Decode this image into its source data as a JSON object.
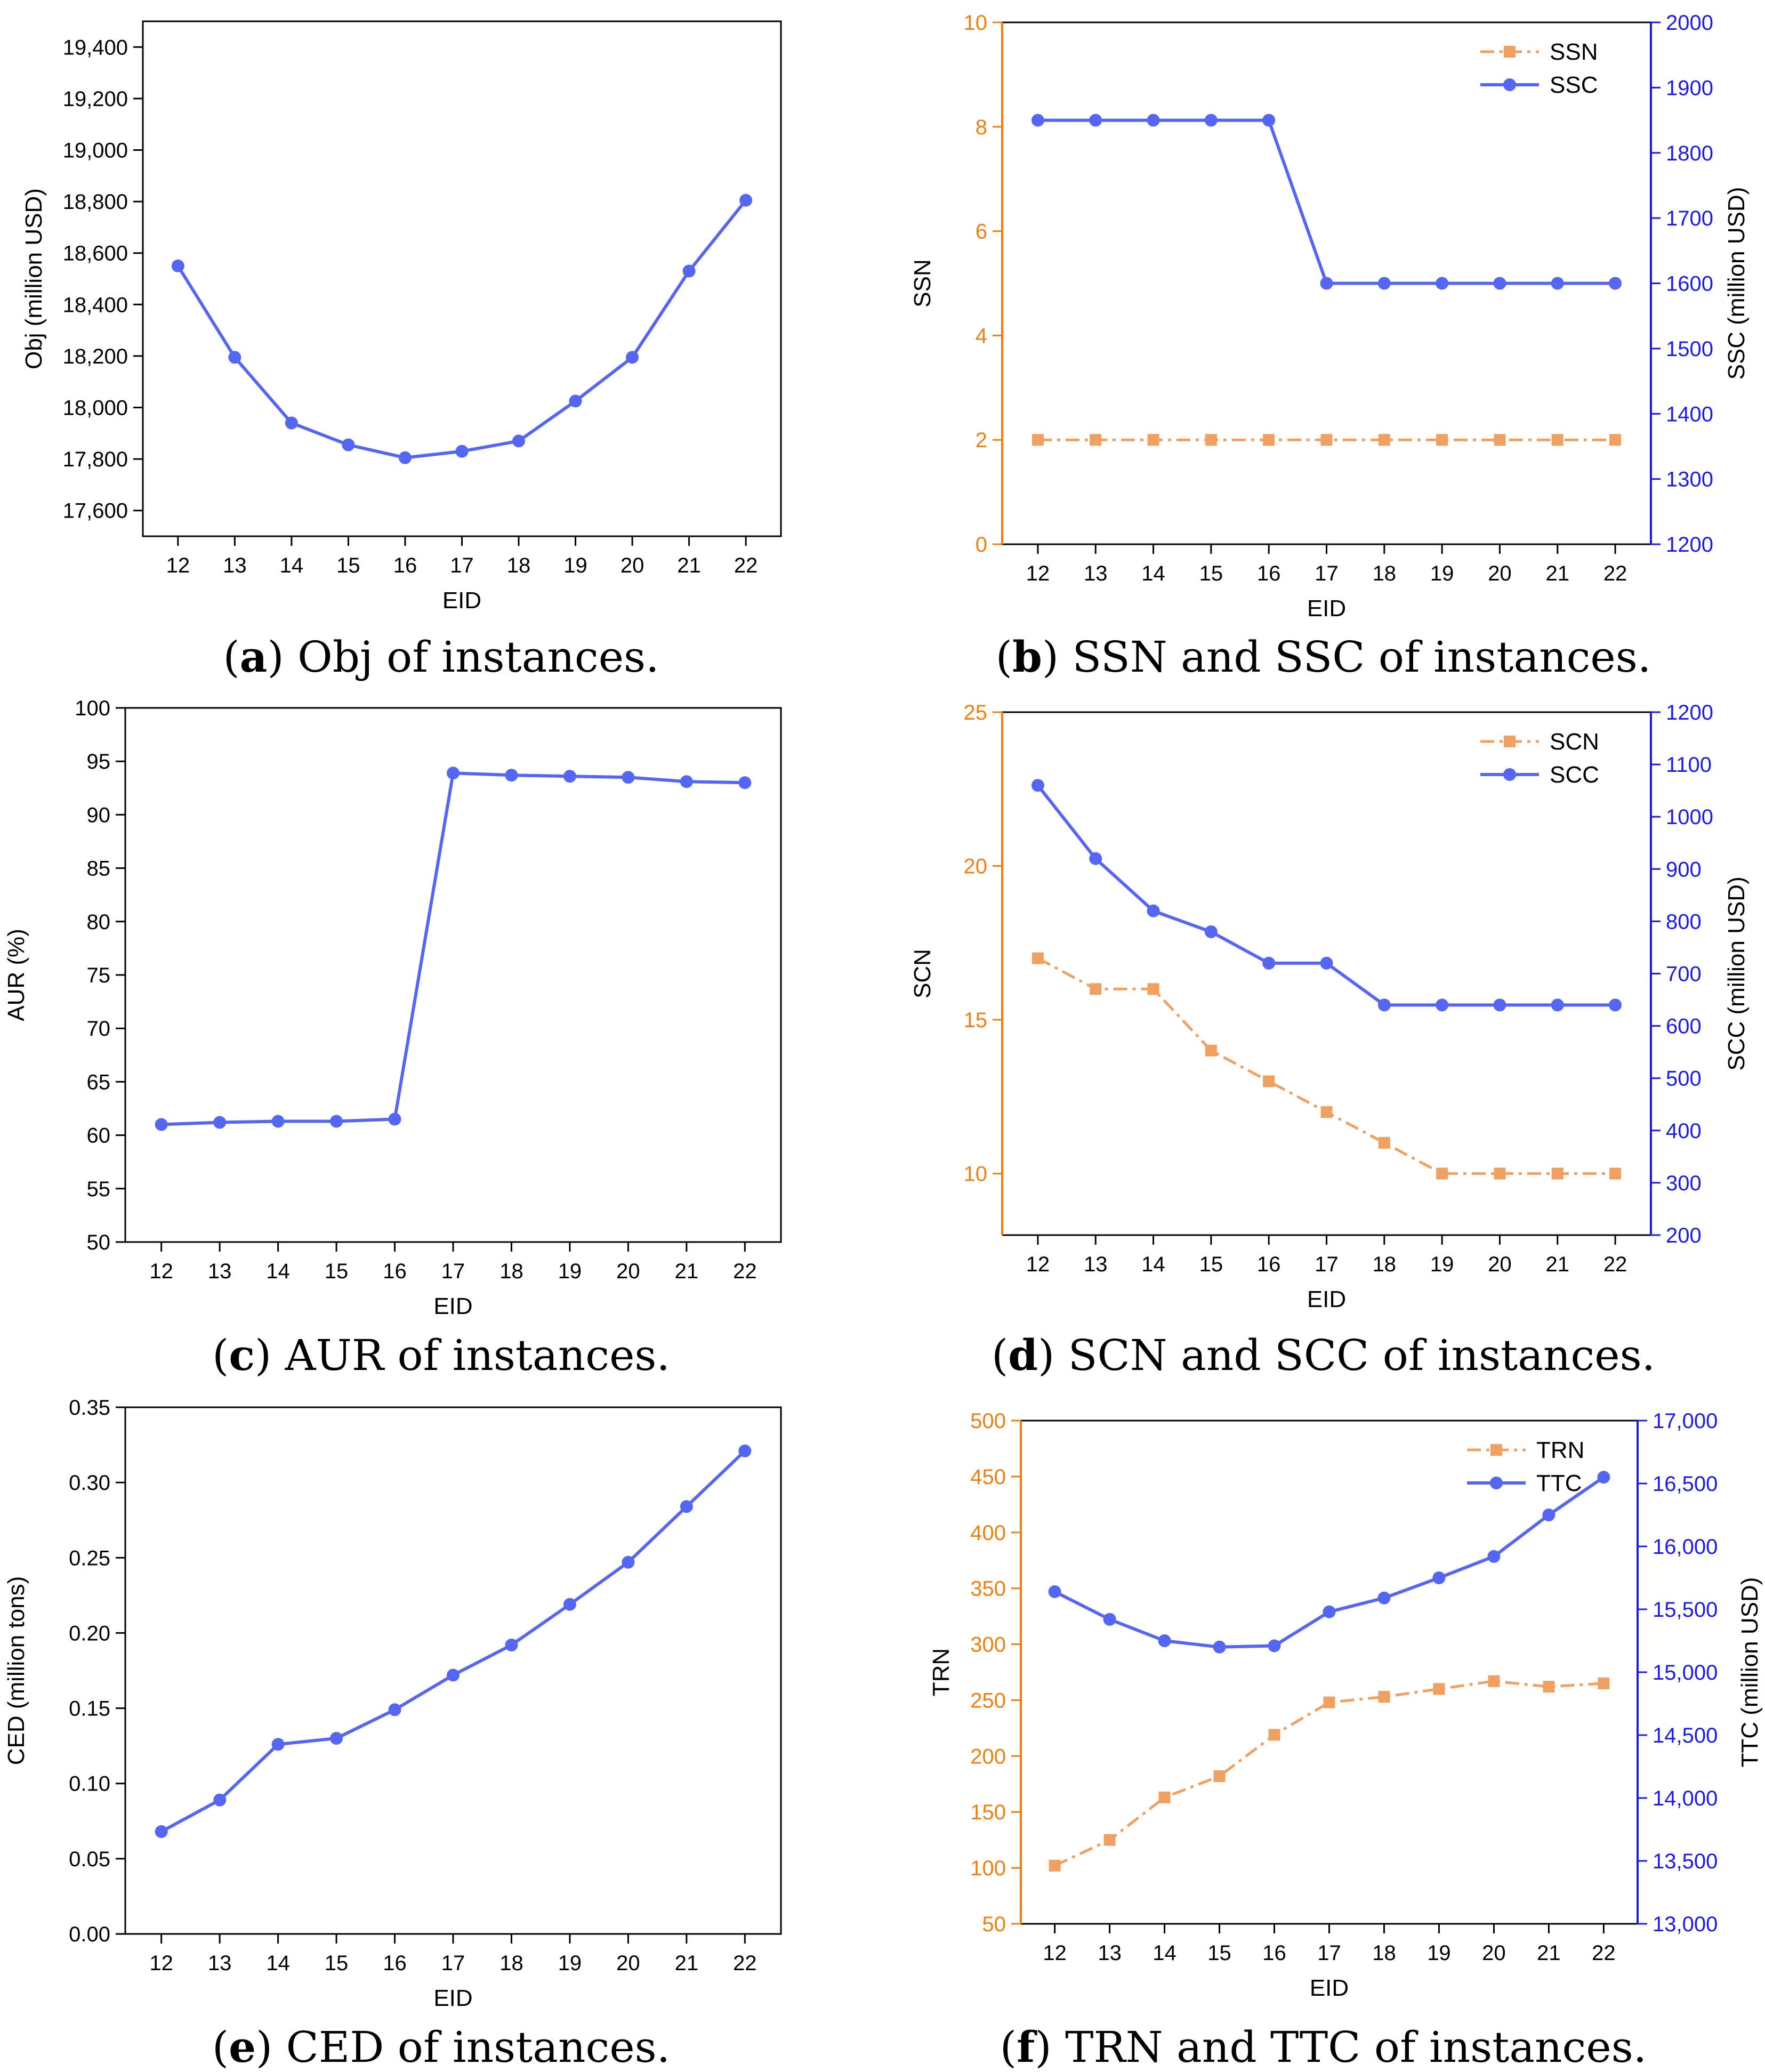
{
  "colors": {
    "primary": "#5566f2",
    "secondary": "#f0a060",
    "secondary_axis": "#f07f10",
    "right_axis": "#1a1af0",
    "axis": "#000000"
  },
  "chart_data": [
    {
      "id": "a",
      "type": "line",
      "caption": {
        "letter": "a",
        "text": ") Obj of instances.",
        "open": "("
      },
      "xlabel": "EID",
      "ylabel": "Obj (million USD)",
      "x": [
        12,
        13,
        14,
        15,
        16,
        17,
        18,
        19,
        20,
        21,
        22
      ],
      "ylim": [
        17500,
        19500
      ],
      "yticks": [
        17600,
        17800,
        18000,
        18200,
        18400,
        18600,
        18800,
        19000,
        19200,
        19400
      ],
      "ytick_labels": [
        "17,600",
        "17,800",
        "18,000",
        "18,200",
        "18,400",
        "18,600",
        "18,800",
        "19,000",
        "19,200",
        "19,400"
      ],
      "series": [
        {
          "name": "Obj",
          "axis": "left",
          "style": "circle-solid",
          "color": "#5566f2",
          "values": [
            18550,
            18195,
            17940,
            17855,
            17805,
            17830,
            17870,
            18025,
            18195,
            18530,
            18805
          ]
        }
      ]
    },
    {
      "id": "b",
      "type": "line",
      "caption": {
        "letter": "b",
        "text": ") SSN and SSC of instances.",
        "open": "("
      },
      "xlabel": "EID",
      "ylabel": "SSN",
      "ylabel_right": "SSC (million USD)",
      "x": [
        12,
        13,
        14,
        15,
        16,
        17,
        18,
        19,
        20,
        21,
        22
      ],
      "ylim": [
        0,
        10
      ],
      "yticks": [
        0,
        2,
        4,
        6,
        8,
        10
      ],
      "ytick_labels": [
        "0",
        "2",
        "4",
        "6",
        "8",
        "10"
      ],
      "ylim_right": [
        1200,
        2000
      ],
      "yticks_right": [
        1200,
        1300,
        1400,
        1500,
        1600,
        1700,
        1800,
        1900,
        2000
      ],
      "ytick_labels_right": [
        "1200",
        "1300",
        "1400",
        "1500",
        "1600",
        "1700",
        "1800",
        "1900",
        "2000"
      ],
      "legend": "top-right",
      "series": [
        {
          "name": "SSN",
          "axis": "left",
          "style": "square-dashdot",
          "color": "#f0a060",
          "values": [
            2,
            2,
            2,
            2,
            2,
            2,
            2,
            2,
            2,
            2,
            2
          ]
        },
        {
          "name": "SSC",
          "axis": "right",
          "style": "circle-solid",
          "color": "#5566f2",
          "values": [
            1850,
            1850,
            1850,
            1850,
            1850,
            1600,
            1600,
            1600,
            1600,
            1600,
            1600
          ]
        }
      ]
    },
    {
      "id": "c",
      "type": "line",
      "caption": {
        "letter": "c",
        "text": ") AUR of instances.",
        "open": "("
      },
      "xlabel": "EID",
      "ylabel": "AUR (%)",
      "x": [
        12,
        13,
        14,
        15,
        16,
        17,
        18,
        19,
        20,
        21,
        22
      ],
      "ylim": [
        50,
        100
      ],
      "yticks": [
        50,
        55,
        60,
        65,
        70,
        75,
        80,
        85,
        90,
        95,
        100
      ],
      "ytick_labels": [
        "50",
        "55",
        "60",
        "65",
        "70",
        "75",
        "80",
        "85",
        "90",
        "95",
        "100"
      ],
      "series": [
        {
          "name": "AUR",
          "axis": "left",
          "style": "circle-solid",
          "color": "#5566f2",
          "values": [
            61.0,
            61.2,
            61.3,
            61.3,
            61.5,
            93.9,
            93.7,
            93.6,
            93.5,
            93.1,
            93.0
          ]
        }
      ]
    },
    {
      "id": "d",
      "type": "line",
      "caption": {
        "letter": "d",
        "text": ") SCN and SCC of instances.",
        "open": "("
      },
      "xlabel": "EID",
      "ylabel": "SCN",
      "ylabel_right": "SCC (million USD)",
      "x": [
        12,
        13,
        14,
        15,
        16,
        17,
        18,
        19,
        20,
        21,
        22
      ],
      "ylim": [
        8,
        25
      ],
      "yticks": [
        10,
        15,
        20,
        25
      ],
      "ytick_labels": [
        "10",
        "15",
        "20",
        "25"
      ],
      "ylim_right": [
        200,
        1200
      ],
      "yticks_right": [
        200,
        300,
        400,
        500,
        600,
        700,
        800,
        900,
        1000,
        1100,
        1200
      ],
      "ytick_labels_right": [
        "200",
        "300",
        "400",
        "500",
        "600",
        "700",
        "800",
        "900",
        "1000",
        "1100",
        "1200"
      ],
      "legend": "top-right",
      "series": [
        {
          "name": "SCN",
          "axis": "left",
          "style": "square-dashdot",
          "color": "#f0a060",
          "values": [
            17,
            16,
            16,
            14,
            13,
            12,
            11,
            10,
            10,
            10,
            10
          ]
        },
        {
          "name": "SCC",
          "axis": "right",
          "style": "circle-solid",
          "color": "#5566f2",
          "values": [
            1060,
            920,
            820,
            780,
            720,
            720,
            640,
            640,
            640,
            640,
            640
          ]
        }
      ]
    },
    {
      "id": "e",
      "type": "line",
      "caption": {
        "letter": "e",
        "text": ") CED of instances.",
        "open": "("
      },
      "xlabel": "EID",
      "ylabel": "CED (million tons)",
      "x": [
        12,
        13,
        14,
        15,
        16,
        17,
        18,
        19,
        20,
        21,
        22
      ],
      "ylim": [
        0,
        0.35
      ],
      "yticks": [
        0,
        0.05,
        0.1,
        0.15,
        0.2,
        0.25,
        0.3,
        0.35
      ],
      "ytick_labels": [
        "0.00",
        "0.05",
        "0.10",
        "0.15",
        "0.20",
        "0.25",
        "0.30",
        "0.35"
      ],
      "series": [
        {
          "name": "CED",
          "axis": "left",
          "style": "circle-solid",
          "color": "#5566f2",
          "values": [
            0.068,
            0.089,
            0.126,
            0.13,
            0.149,
            0.172,
            0.192,
            0.219,
            0.247,
            0.284,
            0.321
          ]
        }
      ]
    },
    {
      "id": "f",
      "type": "line",
      "caption": {
        "letter": "f",
        "text": " TRN and TTC of instances.",
        "open": "(",
        "close": ")"
      },
      "xlabel": "EID",
      "ylabel": "TRN",
      "ylabel_right": "TTC (million USD)",
      "x": [
        12,
        13,
        14,
        15,
        16,
        17,
        18,
        19,
        20,
        21,
        22
      ],
      "ylim": [
        50,
        500
      ],
      "yticks": [
        50,
        100,
        150,
        200,
        250,
        300,
        350,
        400,
        450,
        500
      ],
      "ytick_labels": [
        "50",
        "100",
        "150",
        "200",
        "250",
        "300",
        "350",
        "400",
        "450",
        "500"
      ],
      "ylim_right": [
        13000,
        17000
      ],
      "yticks_right": [
        13000,
        13500,
        14000,
        14500,
        15000,
        15500,
        16000,
        16500,
        17000
      ],
      "ytick_labels_right": [
        "13,000",
        "13,500",
        "14,000",
        "14,500",
        "15,000",
        "15,500",
        "16,000",
        "16,500",
        "17,000"
      ],
      "legend": "top-right",
      "series": [
        {
          "name": "TRN",
          "axis": "left",
          "style": "square-dashdot",
          "color": "#f0a060",
          "values": [
            102,
            125,
            163,
            182,
            219,
            248,
            253,
            260,
            267,
            262,
            265
          ]
        },
        {
          "name": "TTC",
          "axis": "right",
          "style": "circle-solid",
          "color": "#5566f2",
          "values": [
            15640,
            15420,
            15250,
            15200,
            15210,
            15480,
            15590,
            15750,
            15920,
            16250,
            16550
          ]
        }
      ]
    }
  ]
}
